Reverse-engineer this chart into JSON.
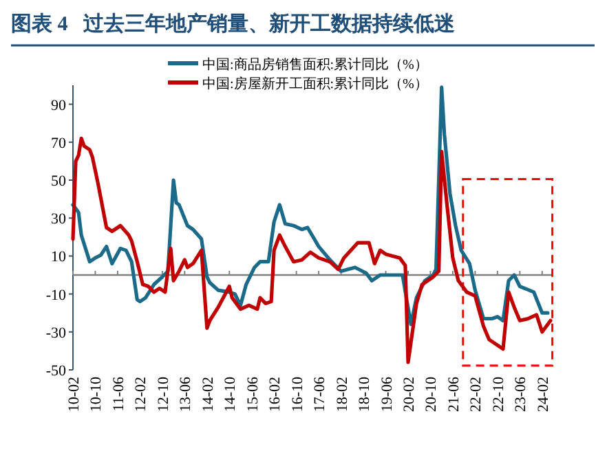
{
  "chart_data": {
    "type": "line",
    "title": "图表 4   过去三年地产销量、新开工数据持续低迷",
    "series": [
      {
        "name": "中国:商品房销售面积:累计同比（%）",
        "color": "#1b6a8a",
        "x": [
          "2010-02",
          "2010-04",
          "2010-05",
          "2010-08",
          "2010-10",
          "2010-12",
          "2011-02",
          "2011-04",
          "2011-07",
          "2011-09",
          "2011-11",
          "2012-01",
          "2012-02",
          "2012-04",
          "2012-07",
          "2012-10",
          "2012-12",
          "2013-02",
          "2013-03",
          "2013-04",
          "2013-07",
          "2013-09",
          "2013-12",
          "2014-01",
          "2014-02",
          "2014-03",
          "2014-06",
          "2014-10",
          "2014-12",
          "2015-02",
          "2015-04",
          "2015-07",
          "2015-09",
          "2015-12",
          "2016-02",
          "2016-04",
          "2016-06",
          "2016-09",
          "2016-12",
          "2017-02",
          "2017-04",
          "2017-06",
          "2017-10",
          "2018-02",
          "2018-07",
          "2018-11",
          "2019-01",
          "2019-04",
          "2019-10",
          "2019-12",
          "2020-03",
          "2020-05",
          "2020-08",
          "2020-11",
          "2020-12",
          "2021-02",
          "2021-03",
          "2021-05",
          "2021-07",
          "2021-09",
          "2021-12",
          "2022-02",
          "2022-05",
          "2022-08",
          "2022-10",
          "2022-12",
          "2023-02",
          "2023-04",
          "2023-06",
          "2023-11",
          "2024-02",
          "2024-04"
        ],
        "values": [
          37,
          33,
          21,
          7,
          9,
          10.5,
          15,
          6,
          14,
          13,
          7,
          -13,
          -14,
          -12,
          -5,
          -1,
          2,
          50,
          38,
          37,
          26,
          24,
          19,
          9,
          -1,
          -4,
          -8,
          -9,
          -10,
          -16,
          -5,
          4,
          7,
          7,
          28,
          37,
          27,
          26,
          24,
          25,
          20,
          15,
          8,
          2,
          4,
          1,
          -3,
          0,
          0,
          0,
          -26,
          -12,
          -3,
          0,
          3,
          99,
          74,
          43,
          26,
          13,
          6,
          -8,
          -23,
          -23,
          -22,
          -24,
          -3,
          0,
          -6,
          -9,
          -20,
          -20
        ]
      },
      {
        "name": "中国:房屋新开工面积:累计同比（%）",
        "color": "#c00000",
        "x": [
          "2010-02",
          "2010-03",
          "2010-04",
          "2010-05",
          "2010-06",
          "2010-08",
          "2010-09",
          "2010-11",
          "2011-02",
          "2011-04",
          "2011-07",
          "2011-10",
          "2011-11",
          "2012-01",
          "2012-03",
          "2012-05",
          "2012-07",
          "2012-09",
          "2012-11",
          "2013-01",
          "2013-02",
          "2013-04",
          "2013-06",
          "2013-07",
          "2013-09",
          "2013-12",
          "2014-02",
          "2014-03",
          "2014-06",
          "2014-10",
          "2014-11",
          "2015-02",
          "2015-05",
          "2015-08",
          "2015-09",
          "2015-11",
          "2016-01",
          "2016-02",
          "2016-04",
          "2016-06",
          "2016-09",
          "2016-12",
          "2017-03",
          "2017-06",
          "2017-10",
          "2018-01",
          "2018-03",
          "2018-08",
          "2018-12",
          "2019-02",
          "2019-04",
          "2019-06",
          "2019-11",
          "2020-01",
          "2020-02",
          "2020-05",
          "2020-07",
          "2020-11",
          "2021-01",
          "2021-02",
          "2021-04",
          "2021-06",
          "2021-08",
          "2021-11",
          "2022-02",
          "2022-05",
          "2022-07",
          "2022-10",
          "2022-12",
          "2023-02",
          "2023-04",
          "2023-06",
          "2023-09",
          "2023-12",
          "2024-02",
          "2024-05"
        ],
        "values": [
          19,
          60,
          63,
          72,
          68,
          66,
          62,
          48,
          25,
          23,
          26,
          21,
          18,
          7,
          -5,
          -6,
          -9,
          -7,
          -9,
          14,
          -3,
          2,
          8,
          4,
          6,
          13,
          -28,
          -24,
          -17,
          -6,
          -12,
          -18,
          -16,
          -18,
          -12,
          -15,
          -14,
          13,
          21,
          15,
          7,
          8,
          12,
          9,
          7,
          3,
          9,
          17,
          17,
          6,
          13,
          11,
          9,
          5,
          -46,
          -15,
          -5,
          -1,
          2,
          65,
          36,
          9,
          -3,
          -9,
          -11,
          -27,
          -34,
          -37,
          -39,
          -9,
          -17,
          -24,
          -23,
          -21,
          -30,
          -24
        ]
      }
    ],
    "xlim": [
      "2010-02",
      "2024-06"
    ],
    "xticks": [
      {
        "value": "2010-02",
        "label": "10-02"
      },
      {
        "value": "2010-10",
        "label": "10-10"
      },
      {
        "value": "2011-06",
        "label": "11-06"
      },
      {
        "value": "2012-02",
        "label": "12-02"
      },
      {
        "value": "2012-10",
        "label": "12-10"
      },
      {
        "value": "2013-06",
        "label": "13-06"
      },
      {
        "value": "2014-02",
        "label": "14-02"
      },
      {
        "value": "2014-10",
        "label": "14-10"
      },
      {
        "value": "2015-06",
        "label": "15-06"
      },
      {
        "value": "2016-02",
        "label": "16-02"
      },
      {
        "value": "2016-10",
        "label": "16-10"
      },
      {
        "value": "2017-06",
        "label": "17-06"
      },
      {
        "value": "2018-02",
        "label": "18-02"
      },
      {
        "value": "2018-10",
        "label": "18-10"
      },
      {
        "value": "2019-06",
        "label": "19-06"
      },
      {
        "value": "2020-02",
        "label": "20-02"
      },
      {
        "value": "2020-10",
        "label": "20-10"
      },
      {
        "value": "2021-06",
        "label": "21-06"
      },
      {
        "value": "2022-02",
        "label": "22-02"
      },
      {
        "value": "2022-10",
        "label": "22-10"
      },
      {
        "value": "2023-06",
        "label": "23-06"
      },
      {
        "value": "2024-02",
        "label": "24-02"
      }
    ],
    "ylim": [
      -50,
      100
    ],
    "yticks": [
      90,
      70,
      50,
      30,
      10,
      -10,
      -30,
      -50
    ],
    "legend": "top",
    "grid": false
  }
}
